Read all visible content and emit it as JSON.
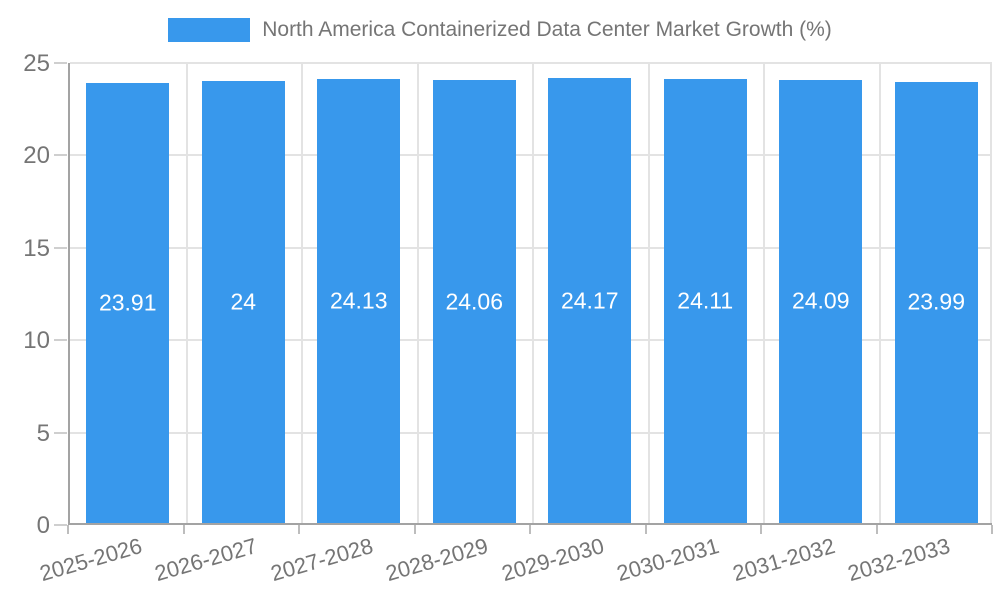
{
  "chart_data": {
    "type": "bar",
    "title": "",
    "legend_label": "North America Containerized Data Center Market Growth (%)",
    "legend_position": "top-center",
    "categories": [
      "2025-2026",
      "2026-2027",
      "2027-2028",
      "2028-2029",
      "2029-2030",
      "2030-2031",
      "2031-2032",
      "2032-2033"
    ],
    "values": [
      23.91,
      24,
      24.13,
      24.06,
      24.17,
      24.11,
      24.09,
      23.99
    ],
    "value_labels": [
      "23.91",
      "24",
      "24.13",
      "24.06",
      "24.17",
      "24.11",
      "24.09",
      "23.99"
    ],
    "xlabel": "",
    "ylabel": "",
    "ylim": [
      0,
      25
    ],
    "yticks": [
      0,
      5,
      10,
      15,
      20,
      25
    ],
    "grid": true,
    "colors": {
      "bar": "#3898ec",
      "data_label": "#ffffff",
      "axis_text": "#757575",
      "grid_line": "#e3e3e3",
      "axis_line": "#a3a3a3"
    }
  }
}
